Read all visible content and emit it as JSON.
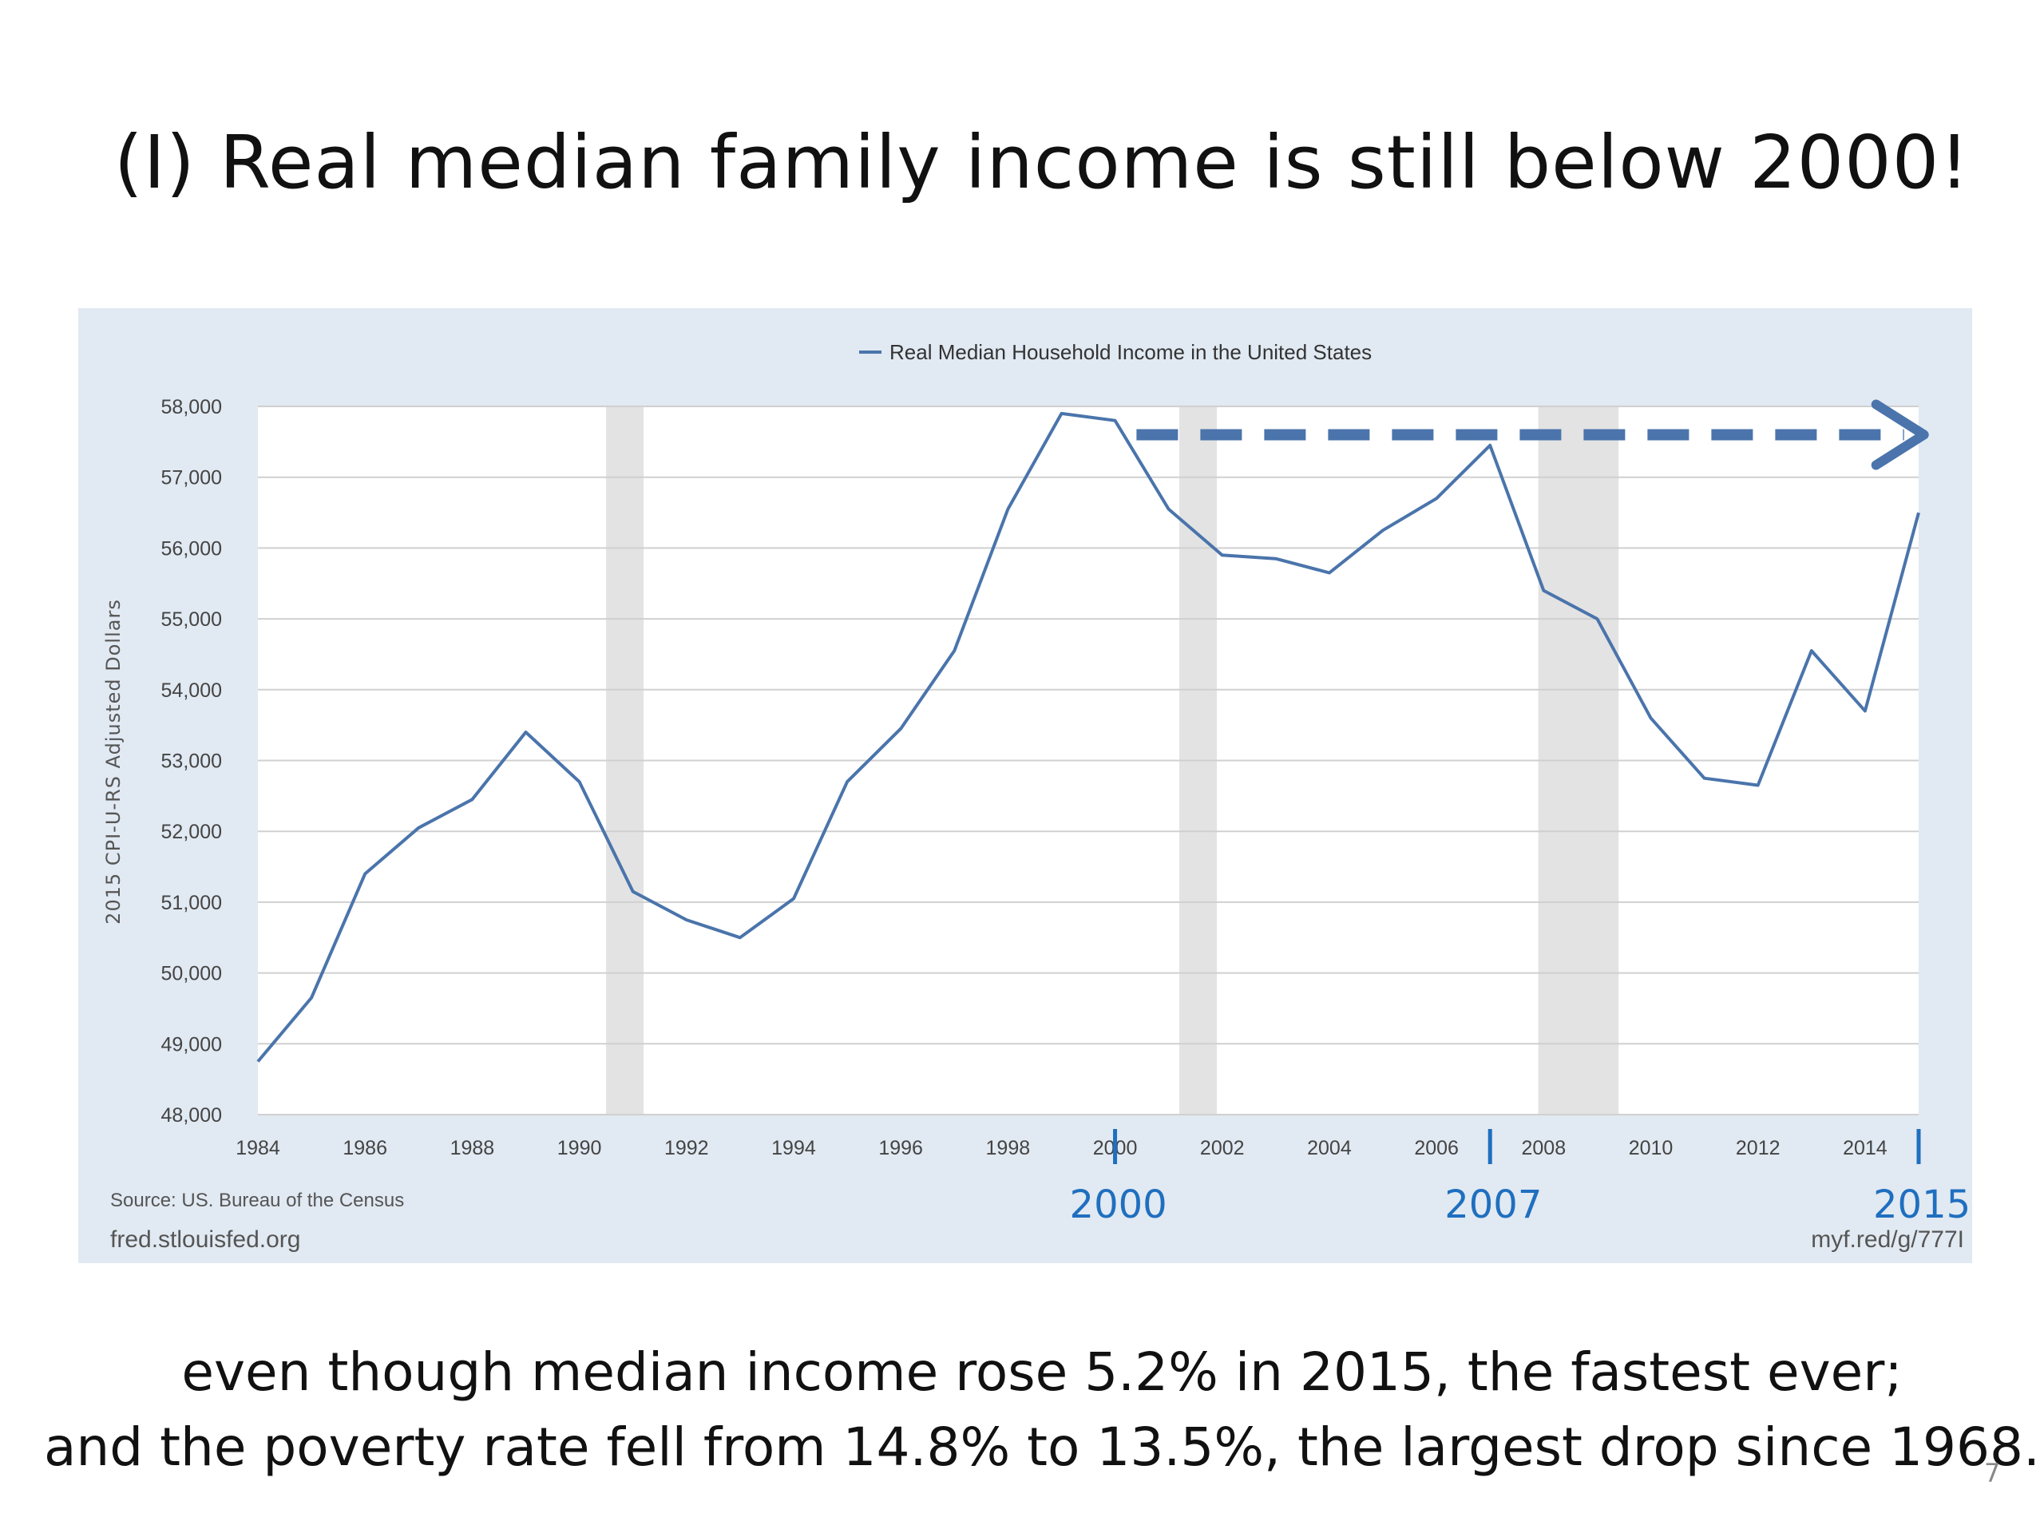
{
  "slide": {
    "title": "(I) Real median family income is still below 2000!",
    "caption_line1": "even though median income rose 5.2% in 2015, the fastest ever;",
    "caption_line2": "and the poverty rate fell from 14.8% to 13.5%, the largest drop since 1968.",
    "page_number": "7"
  },
  "chart_data": {
    "type": "line",
    "title": "",
    "legend": "Real Median Household Income in the United States",
    "legend_position": "top-center",
    "ylabel": "2015 CPI-U-RS Adjusted Dollars",
    "xlabel": "",
    "x": [
      1984,
      1985,
      1986,
      1987,
      1988,
      1989,
      1990,
      1991,
      1992,
      1993,
      1994,
      1995,
      1996,
      1997,
      1998,
      1999,
      2000,
      2001,
      2002,
      2003,
      2004,
      2005,
      2006,
      2007,
      2008,
      2009,
      2010,
      2011,
      2012,
      2013,
      2014,
      2015
    ],
    "series": [
      {
        "name": "Real Median Household Income in the United States",
        "values": [
          48750,
          49650,
          51400,
          52050,
          52450,
          53400,
          52700,
          51150,
          50750,
          50500,
          51050,
          52700,
          53450,
          54550,
          56550,
          57900,
          57800,
          56550,
          55900,
          55850,
          55650,
          56250,
          56700,
          57450,
          55400,
          55000,
          53600,
          52750,
          52650,
          54550,
          53700,
          56500
        ]
      }
    ],
    "xlim": [
      1984,
      2015
    ],
    "ylim": [
      48000,
      58000
    ],
    "xticks": [
      "1984",
      "1986",
      "1988",
      "1990",
      "1992",
      "1994",
      "1996",
      "1998",
      "2000",
      "2002",
      "2004",
      "2006",
      "2008",
      "2010",
      "2012",
      "2014"
    ],
    "yticks": [
      "48,000",
      "49,000",
      "50,000",
      "51,000",
      "52,000",
      "53,000",
      "54,000",
      "55,000",
      "56,000",
      "57,000",
      "58,000"
    ],
    "recessions": [
      [
        1990.5,
        1991.2
      ],
      [
        2001.2,
        2001.9
      ],
      [
        2007.9,
        2009.4
      ]
    ],
    "reference_arrow": {
      "from_year": 2000.4,
      "to_year": 2015.1,
      "value": 57600
    },
    "annotations": [
      "2000",
      "2007",
      "2015"
    ],
    "annotation_years": [
      2000,
      2007,
      2015
    ],
    "grid": true,
    "colors": {
      "line": "#4a74ab",
      "arrow": "#4a74ab",
      "recession": "#e3e3e3",
      "annotation": "#1f6fbf",
      "panel": "#e1e9f2"
    }
  },
  "footer": {
    "source": "Source: US. Bureau of the Census",
    "site_left": "fred.stlouisfed.org",
    "site_right": "myf.red/g/777I"
  }
}
